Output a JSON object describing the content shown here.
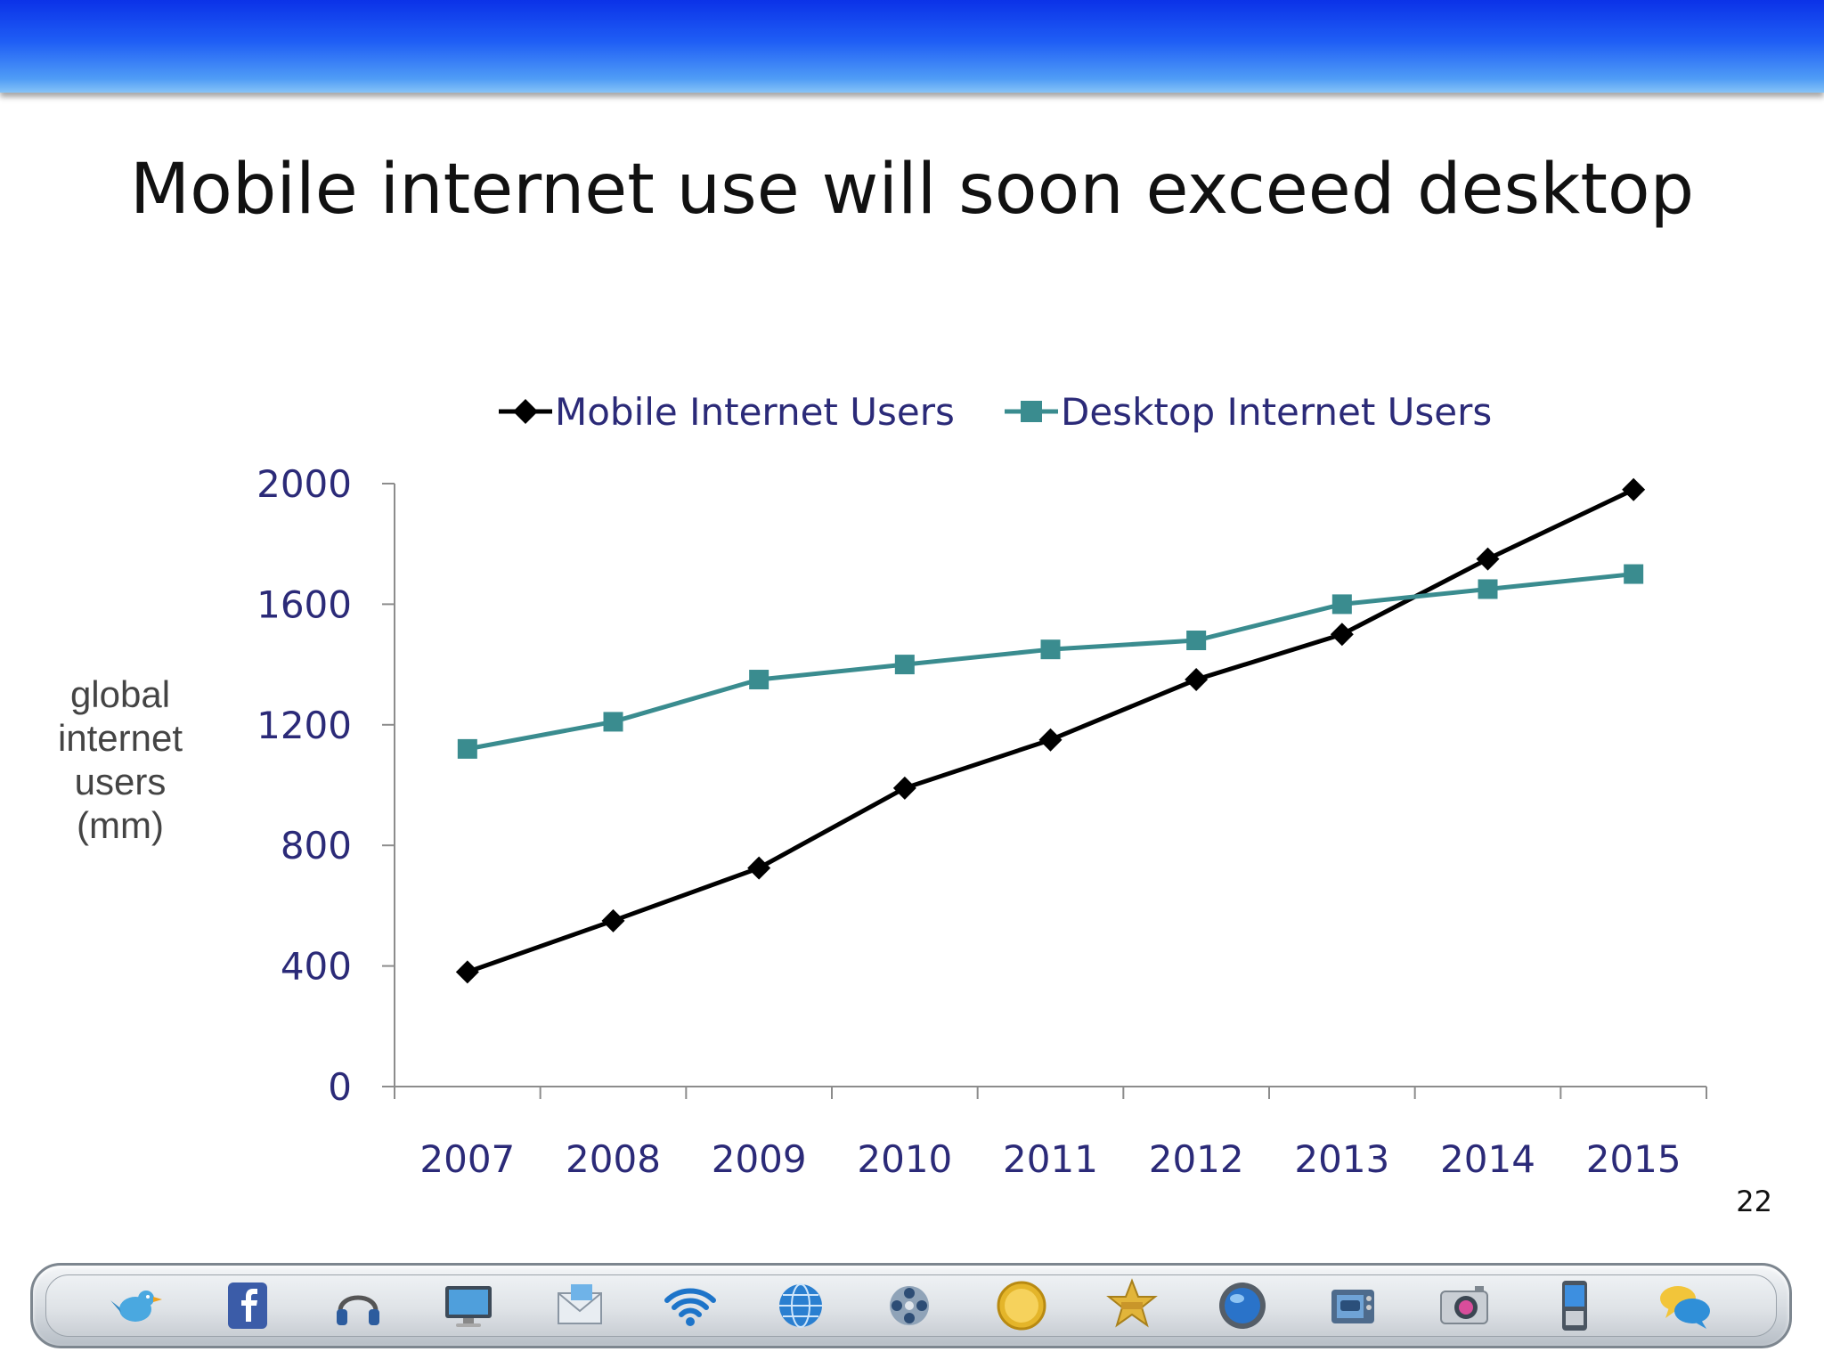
{
  "slide": {
    "title": "Mobile internet use will soon exceed desktop",
    "page_number": "22"
  },
  "chart_data": {
    "type": "line",
    "title": "",
    "ylabel": "global internet users (mm)",
    "ylabel_lines": [
      "global",
      "internet",
      "users",
      "(mm)"
    ],
    "xlabel": "",
    "x": [
      "2007",
      "2008",
      "2009",
      "2010",
      "2011",
      "2012",
      "2013",
      "2014",
      "2015"
    ],
    "ylim": [
      0,
      2000
    ],
    "yticks": [
      "0",
      "400",
      "800",
      "1200",
      "1600",
      "2000"
    ],
    "ytick_values": [
      0,
      400,
      800,
      1200,
      1600,
      2000
    ],
    "legend_position": "top",
    "grid": false,
    "series": [
      {
        "name": "Mobile Internet Users",
        "color": "#000000",
        "marker": "diamond",
        "values": [
          380,
          550,
          725,
          990,
          1150,
          1350,
          1500,
          1750,
          1980
        ]
      },
      {
        "name": "Desktop Internet Users",
        "color": "#3a8c8f",
        "marker": "square",
        "values": [
          1120,
          1210,
          1350,
          1400,
          1450,
          1480,
          1600,
          1650,
          1700
        ]
      }
    ],
    "text_color": "#2b2a78",
    "ylabel_color": "#444444"
  },
  "dock": {
    "icons": [
      "twitter-bird-icon",
      "facebook-icon",
      "headphones-icon",
      "monitor-icon",
      "mail-envelope-icon",
      "wifi-icon",
      "globe-icon",
      "film-reel-icon",
      "gold-button-icon",
      "sheriff-badge-icon",
      "blue-orb-icon",
      "youtube-tv-icon",
      "camera-icon",
      "mobile-phone-icon",
      "chat-bubbles-icon"
    ]
  }
}
